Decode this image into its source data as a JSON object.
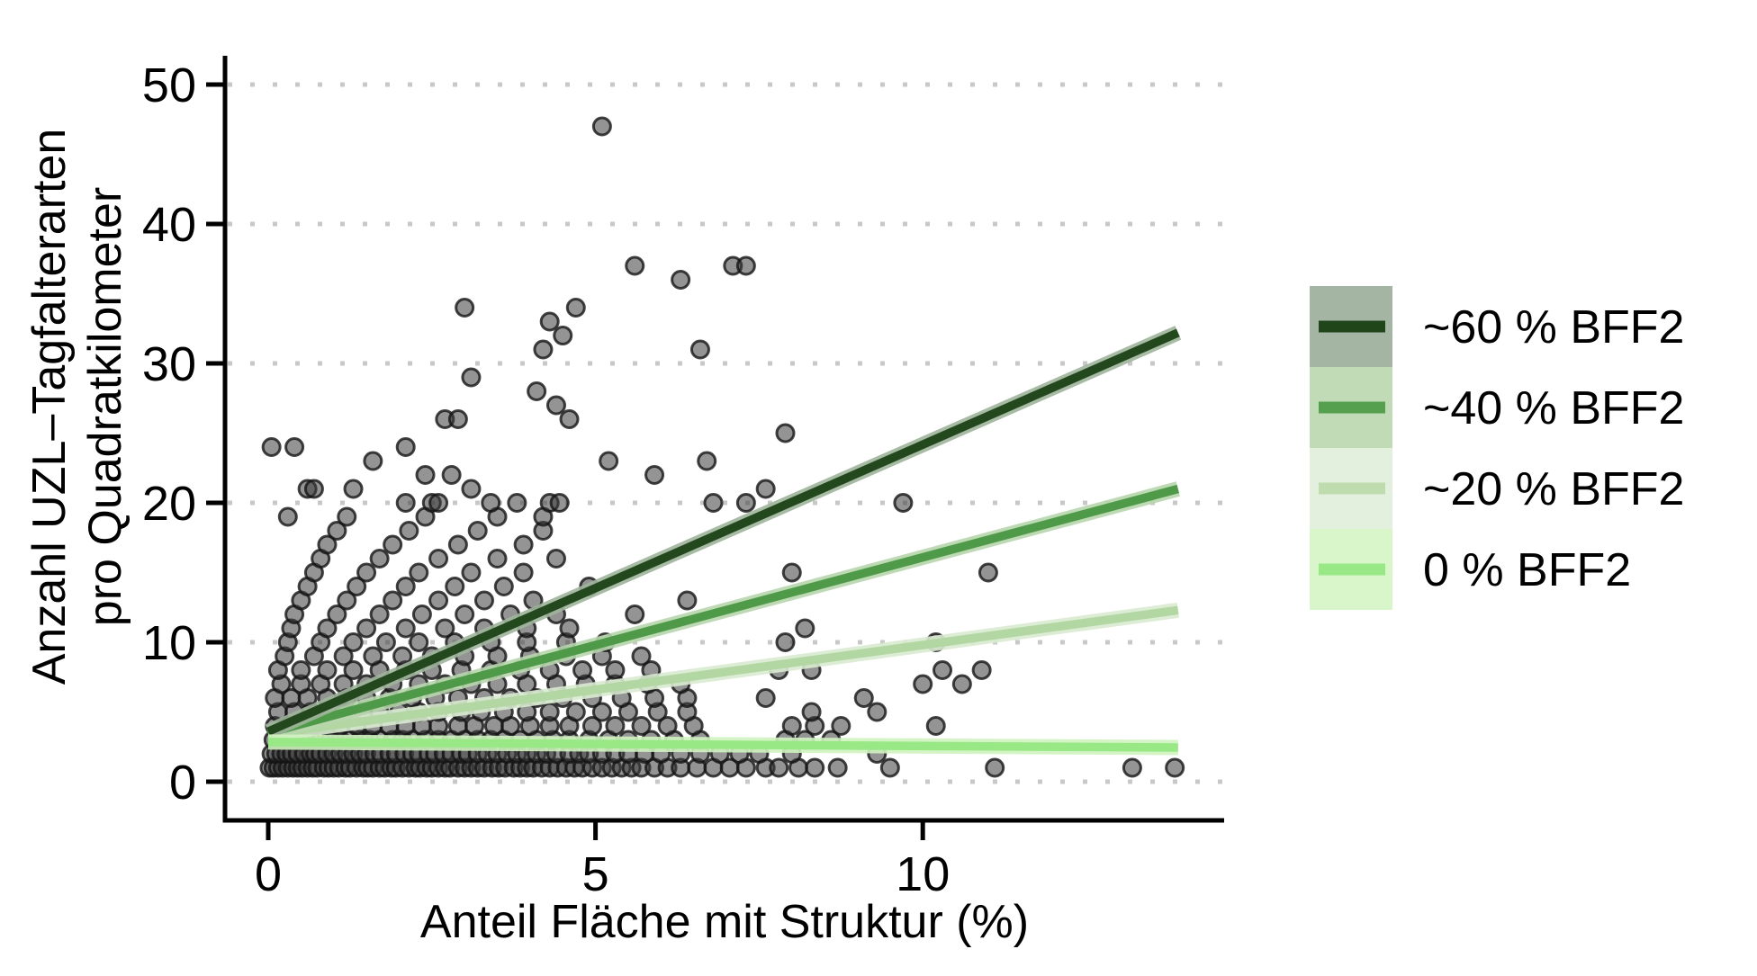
{
  "chart_data": {
    "type": "scatter",
    "title": "",
    "xlabel": "Anteil Fläche mit Struktur (%)",
    "ylabel_lines": [
      "Anzahl UZL–Tagfalterarten",
      "pro Quadratkilometer"
    ],
    "xticks": [
      0,
      5,
      10
    ],
    "yticks": [
      0,
      10,
      20,
      30,
      40,
      50
    ],
    "xlim": [
      -0.66,
      14.6
    ],
    "ylim": [
      -2.8,
      52.8
    ],
    "grid": "dotted horizontal at every 10",
    "legend_position": "right",
    "colors": {
      "grid": "#c8c8c8",
      "axis": "#000000",
      "point_fill": "#3c3c3c",
      "point_stroke": "#141414"
    },
    "series": [
      {
        "name": "~60 % BFF2",
        "color": "#24481e",
        "band": "#9fb49b",
        "x": [
          0,
          13.9
        ],
        "y": [
          3.6,
          32.2
        ]
      },
      {
        "name": "~40 % BFF2",
        "color": "#4f9a49",
        "band": "#b7d6ad",
        "x": [
          0,
          13.9
        ],
        "y": [
          3.5,
          21.0
        ]
      },
      {
        "name": "~20 % BFF2",
        "color": "#b2d7a3",
        "band": "#d9ead0",
        "x": [
          0,
          13.9
        ],
        "y": [
          3.4,
          12.3
        ]
      },
      {
        "name": "0 % BFF2",
        "color": "#98e886",
        "band": "#cff3c0",
        "x": [
          0,
          13.9
        ],
        "y": [
          2.85,
          2.45
        ]
      }
    ],
    "legend": [
      {
        "label": "~60 % BFF2",
        "line": "#20451b",
        "fill": "#a5b5a3"
      },
      {
        "label": "~40 % BFF2",
        "line": "#55a04e",
        "fill": "#c0dbb6"
      },
      {
        "label": "~20 % BFF2",
        "line": "#bedcae",
        "fill": "#e4f0de"
      },
      {
        "label": "0 % BFF2",
        "line": "#98e886",
        "fill": "#d9f6cb"
      }
    ],
    "points": [
      [
        0.02,
        1
      ],
      [
        0.08,
        1
      ],
      [
        0.15,
        1
      ],
      [
        0.22,
        1
      ],
      [
        0.3,
        1
      ],
      [
        0.38,
        1
      ],
      [
        0.45,
        1
      ],
      [
        0.52,
        1
      ],
      [
        0.6,
        1
      ],
      [
        0.68,
        1
      ],
      [
        0.75,
        1
      ],
      [
        0.85,
        1
      ],
      [
        0.92,
        1
      ],
      [
        1.0,
        1
      ],
      [
        1.08,
        1
      ],
      [
        1.18,
        1
      ],
      [
        1.25,
        1
      ],
      [
        1.35,
        1
      ],
      [
        1.45,
        1
      ],
      [
        1.52,
        1
      ],
      [
        1.6,
        1
      ],
      [
        1.7,
        1
      ],
      [
        1.78,
        1
      ],
      [
        1.88,
        1
      ],
      [
        1.95,
        1
      ],
      [
        2.05,
        1
      ],
      [
        2.15,
        1
      ],
      [
        2.25,
        1
      ],
      [
        2.32,
        1
      ],
      [
        2.42,
        1
      ],
      [
        2.5,
        1
      ],
      [
        2.6,
        1
      ],
      [
        2.7,
        1
      ],
      [
        2.78,
        1
      ],
      [
        2.9,
        1
      ],
      [
        3.0,
        1
      ],
      [
        3.1,
        1
      ],
      [
        3.2,
        1
      ],
      [
        3.3,
        1
      ],
      [
        3.42,
        1
      ],
      [
        3.52,
        1
      ],
      [
        3.62,
        1
      ],
      [
        3.75,
        1
      ],
      [
        3.85,
        1
      ],
      [
        3.95,
        1
      ],
      [
        4.05,
        1
      ],
      [
        4.18,
        1
      ],
      [
        4.3,
        1
      ],
      [
        4.42,
        1
      ],
      [
        4.55,
        1
      ],
      [
        4.68,
        1
      ],
      [
        4.8,
        1
      ],
      [
        4.95,
        1
      ],
      [
        5.1,
        1
      ],
      [
        5.25,
        1
      ],
      [
        5.4,
        1
      ],
      [
        5.55,
        1
      ],
      [
        5.7,
        1
      ],
      [
        5.9,
        1
      ],
      [
        6.1,
        1
      ],
      [
        6.3,
        1
      ],
      [
        6.55,
        1
      ],
      [
        6.8,
        1
      ],
      [
        7.05,
        1
      ],
      [
        7.3,
        1
      ],
      [
        7.6,
        1
      ],
      [
        7.8,
        1
      ],
      [
        8.1,
        1
      ],
      [
        8.35,
        1
      ],
      [
        8.7,
        1
      ],
      [
        9.5,
        1
      ],
      [
        11.1,
        1
      ],
      [
        13.2,
        1
      ],
      [
        13.85,
        1
      ],
      [
        0.05,
        2
      ],
      [
        0.12,
        2
      ],
      [
        0.2,
        2
      ],
      [
        0.28,
        2
      ],
      [
        0.36,
        2
      ],
      [
        0.45,
        2
      ],
      [
        0.55,
        2
      ],
      [
        0.65,
        2
      ],
      [
        0.72,
        2
      ],
      [
        0.8,
        2
      ],
      [
        0.9,
        2
      ],
      [
        1.0,
        2
      ],
      [
        1.1,
        2
      ],
      [
        1.2,
        2
      ],
      [
        1.3,
        2
      ],
      [
        1.4,
        2
      ],
      [
        1.5,
        2
      ],
      [
        1.62,
        2
      ],
      [
        1.72,
        2
      ],
      [
        1.85,
        2
      ],
      [
        1.95,
        2
      ],
      [
        2.08,
        2
      ],
      [
        2.2,
        2
      ],
      [
        2.3,
        2
      ],
      [
        2.45,
        2
      ],
      [
        2.55,
        2
      ],
      [
        2.68,
        2
      ],
      [
        2.8,
        2
      ],
      [
        2.95,
        2
      ],
      [
        3.05,
        2
      ],
      [
        3.2,
        2
      ],
      [
        3.35,
        2
      ],
      [
        3.5,
        2
      ],
      [
        3.65,
        2
      ],
      [
        3.8,
        2
      ],
      [
        3.95,
        2
      ],
      [
        4.1,
        2
      ],
      [
        4.25,
        2
      ],
      [
        4.4,
        2
      ],
      [
        4.6,
        2
      ],
      [
        4.75,
        2
      ],
      [
        4.9,
        2
      ],
      [
        5.1,
        2
      ],
      [
        5.3,
        2
      ],
      [
        5.5,
        2
      ],
      [
        5.75,
        2
      ],
      [
        6.0,
        2
      ],
      [
        6.3,
        2
      ],
      [
        6.6,
        2
      ],
      [
        6.9,
        2
      ],
      [
        7.2,
        2
      ],
      [
        7.5,
        2
      ],
      [
        8.0,
        2
      ],
      [
        9.3,
        2
      ],
      [
        0.08,
        3
      ],
      [
        0.2,
        3
      ],
      [
        0.35,
        3
      ],
      [
        0.5,
        3
      ],
      [
        0.65,
        3
      ],
      [
        0.8,
        3
      ],
      [
        0.95,
        3
      ],
      [
        1.1,
        3
      ],
      [
        1.25,
        3
      ],
      [
        1.4,
        3
      ],
      [
        1.55,
        3
      ],
      [
        1.7,
        3
      ],
      [
        1.9,
        3
      ],
      [
        2.05,
        3
      ],
      [
        2.2,
        3
      ],
      [
        2.4,
        3
      ],
      [
        2.6,
        3
      ],
      [
        2.8,
        3
      ],
      [
        3.0,
        3
      ],
      [
        3.2,
        3
      ],
      [
        3.4,
        3
      ],
      [
        3.6,
        3
      ],
      [
        3.85,
        3
      ],
      [
        4.1,
        3
      ],
      [
        4.35,
        3
      ],
      [
        4.6,
        3
      ],
      [
        4.9,
        3
      ],
      [
        5.2,
        3
      ],
      [
        5.5,
        3
      ],
      [
        5.85,
        3
      ],
      [
        6.2,
        3
      ],
      [
        6.6,
        3
      ],
      [
        7.9,
        3
      ],
      [
        8.2,
        3
      ],
      [
        8.6,
        3
      ],
      [
        0.1,
        4
      ],
      [
        0.3,
        4
      ],
      [
        0.5,
        4
      ],
      [
        0.7,
        4
      ],
      [
        0.9,
        4
      ],
      [
        1.1,
        4
      ],
      [
        1.35,
        4
      ],
      [
        1.6,
        4
      ],
      [
        1.85,
        4
      ],
      [
        2.1,
        4
      ],
      [
        2.35,
        4
      ],
      [
        2.6,
        4
      ],
      [
        2.9,
        4
      ],
      [
        3.15,
        4
      ],
      [
        3.45,
        4
      ],
      [
        3.7,
        4
      ],
      [
        4.0,
        4
      ],
      [
        4.3,
        4
      ],
      [
        4.6,
        4
      ],
      [
        4.95,
        4
      ],
      [
        5.3,
        4
      ],
      [
        5.7,
        4
      ],
      [
        6.1,
        4
      ],
      [
        6.5,
        4
      ],
      [
        8.0,
        4
      ],
      [
        8.35,
        4
      ],
      [
        8.75,
        4
      ],
      [
        10.2,
        4
      ],
      [
        0.15,
        5
      ],
      [
        0.4,
        5
      ],
      [
        0.65,
        5
      ],
      [
        0.9,
        5
      ],
      [
        1.15,
        5
      ],
      [
        1.45,
        5
      ],
      [
        1.7,
        5
      ],
      [
        2.0,
        5
      ],
      [
        2.3,
        5
      ],
      [
        2.6,
        5
      ],
      [
        2.95,
        5
      ],
      [
        3.25,
        5
      ],
      [
        3.6,
        5
      ],
      [
        3.95,
        5
      ],
      [
        4.3,
        5
      ],
      [
        4.7,
        5
      ],
      [
        5.1,
        5
      ],
      [
        5.5,
        5
      ],
      [
        5.95,
        5
      ],
      [
        6.4,
        5
      ],
      [
        8.3,
        5
      ],
      [
        9.3,
        5
      ],
      [
        0.1,
        6
      ],
      [
        0.35,
        6
      ],
      [
        0.6,
        6
      ],
      [
        0.9,
        6
      ],
      [
        1.2,
        6
      ],
      [
        1.5,
        6
      ],
      [
        1.85,
        6
      ],
      [
        2.2,
        6
      ],
      [
        2.55,
        6
      ],
      [
        2.9,
        6
      ],
      [
        3.3,
        6
      ],
      [
        3.7,
        6
      ],
      [
        4.1,
        6
      ],
      [
        4.5,
        6
      ],
      [
        4.95,
        6
      ],
      [
        5.4,
        6
      ],
      [
        5.9,
        6
      ],
      [
        6.4,
        6
      ],
      [
        7.6,
        6
      ],
      [
        9.1,
        6
      ],
      [
        0.2,
        7
      ],
      [
        0.5,
        7
      ],
      [
        0.8,
        7
      ],
      [
        1.15,
        7
      ],
      [
        1.5,
        7
      ],
      [
        1.9,
        7
      ],
      [
        2.3,
        7
      ],
      [
        2.7,
        7
      ],
      [
        3.1,
        7
      ],
      [
        3.5,
        7
      ],
      [
        3.95,
        7
      ],
      [
        4.4,
        7
      ],
      [
        4.85,
        7
      ],
      [
        5.3,
        7
      ],
      [
        5.8,
        7
      ],
      [
        6.3,
        7
      ],
      [
        10.0,
        7
      ],
      [
        10.6,
        7
      ],
      [
        0.15,
        8
      ],
      [
        0.5,
        8
      ],
      [
        0.9,
        8
      ],
      [
        1.3,
        8
      ],
      [
        1.7,
        8
      ],
      [
        2.1,
        8
      ],
      [
        2.5,
        8
      ],
      [
        2.95,
        8
      ],
      [
        3.4,
        8
      ],
      [
        3.85,
        8
      ],
      [
        4.3,
        8
      ],
      [
        4.8,
        8
      ],
      [
        5.3,
        8
      ],
      [
        5.85,
        8
      ],
      [
        7.8,
        8
      ],
      [
        8.3,
        8
      ],
      [
        10.3,
        8
      ],
      [
        10.9,
        8
      ],
      [
        0.25,
        9
      ],
      [
        0.7,
        9
      ],
      [
        1.15,
        9
      ],
      [
        1.6,
        9
      ],
      [
        2.05,
        9
      ],
      [
        2.5,
        9
      ],
      [
        3.0,
        9
      ],
      [
        3.5,
        9
      ],
      [
        4.0,
        9
      ],
      [
        4.55,
        9
      ],
      [
        5.1,
        9
      ],
      [
        5.7,
        9
      ],
      [
        0.3,
        10
      ],
      [
        0.8,
        10
      ],
      [
        1.3,
        10
      ],
      [
        1.8,
        10
      ],
      [
        2.3,
        10
      ],
      [
        2.85,
        10
      ],
      [
        3.4,
        10
      ],
      [
        3.95,
        10
      ],
      [
        4.55,
        10
      ],
      [
        5.15,
        10
      ],
      [
        7.9,
        10
      ],
      [
        10.2,
        10
      ],
      [
        0.35,
        11
      ],
      [
        0.9,
        11
      ],
      [
        1.5,
        11
      ],
      [
        2.1,
        11
      ],
      [
        2.7,
        11
      ],
      [
        3.3,
        11
      ],
      [
        3.95,
        11
      ],
      [
        4.6,
        11
      ],
      [
        8.2,
        11
      ],
      [
        0.4,
        12
      ],
      [
        1.05,
        12
      ],
      [
        1.7,
        12
      ],
      [
        2.35,
        12
      ],
      [
        3.0,
        12
      ],
      [
        3.7,
        12
      ],
      [
        4.4,
        12
      ],
      [
        5.6,
        12
      ],
      [
        0.5,
        13
      ],
      [
        1.2,
        13
      ],
      [
        1.9,
        13
      ],
      [
        2.6,
        13
      ],
      [
        3.3,
        13
      ],
      [
        4.05,
        13
      ],
      [
        6.4,
        13
      ],
      [
        0.6,
        14
      ],
      [
        1.35,
        14
      ],
      [
        2.1,
        14
      ],
      [
        2.85,
        14
      ],
      [
        3.6,
        14
      ],
      [
        4.9,
        14
      ],
      [
        0.7,
        15
      ],
      [
        1.5,
        15
      ],
      [
        2.3,
        15
      ],
      [
        3.1,
        15
      ],
      [
        3.9,
        15
      ],
      [
        8.0,
        15
      ],
      [
        11.0,
        15
      ],
      [
        0.8,
        16
      ],
      [
        1.7,
        16
      ],
      [
        2.6,
        16
      ],
      [
        3.5,
        16
      ],
      [
        4.4,
        16
      ],
      [
        0.9,
        17
      ],
      [
        1.9,
        17
      ],
      [
        2.9,
        17
      ],
      [
        3.9,
        17
      ],
      [
        1.05,
        18
      ],
      [
        2.15,
        18
      ],
      [
        3.2,
        18
      ],
      [
        4.2,
        18
      ],
      [
        0.3,
        19
      ],
      [
        1.2,
        19
      ],
      [
        2.4,
        19
      ],
      [
        3.5,
        19
      ],
      [
        4.2,
        19
      ],
      [
        2.1,
        20
      ],
      [
        2.5,
        20
      ],
      [
        2.6,
        20
      ],
      [
        3.4,
        20
      ],
      [
        3.8,
        20
      ],
      [
        4.3,
        20
      ],
      [
        4.45,
        20
      ],
      [
        6.8,
        20
      ],
      [
        7.3,
        20
      ],
      [
        9.7,
        20
      ],
      [
        0.6,
        21
      ],
      [
        0.7,
        21
      ],
      [
        1.3,
        21
      ],
      [
        3.1,
        21
      ],
      [
        7.6,
        21
      ],
      [
        2.4,
        22
      ],
      [
        2.8,
        22
      ],
      [
        5.9,
        22
      ],
      [
        1.6,
        23
      ],
      [
        5.2,
        23
      ],
      [
        6.7,
        23
      ],
      [
        0.05,
        24
      ],
      [
        0.4,
        24
      ],
      [
        2.1,
        24
      ],
      [
        7.9,
        25
      ],
      [
        2.7,
        26
      ],
      [
        2.9,
        26
      ],
      [
        4.6,
        26
      ],
      [
        4.4,
        27
      ],
      [
        4.1,
        28
      ],
      [
        3.1,
        29
      ],
      [
        4.2,
        31
      ],
      [
        6.6,
        31
      ],
      [
        4.5,
        32
      ],
      [
        4.3,
        33
      ],
      [
        3.0,
        34
      ],
      [
        4.7,
        34
      ],
      [
        6.3,
        36
      ],
      [
        5.6,
        37
      ],
      [
        7.1,
        37
      ],
      [
        7.3,
        37
      ],
      [
        5.1,
        47
      ]
    ]
  }
}
